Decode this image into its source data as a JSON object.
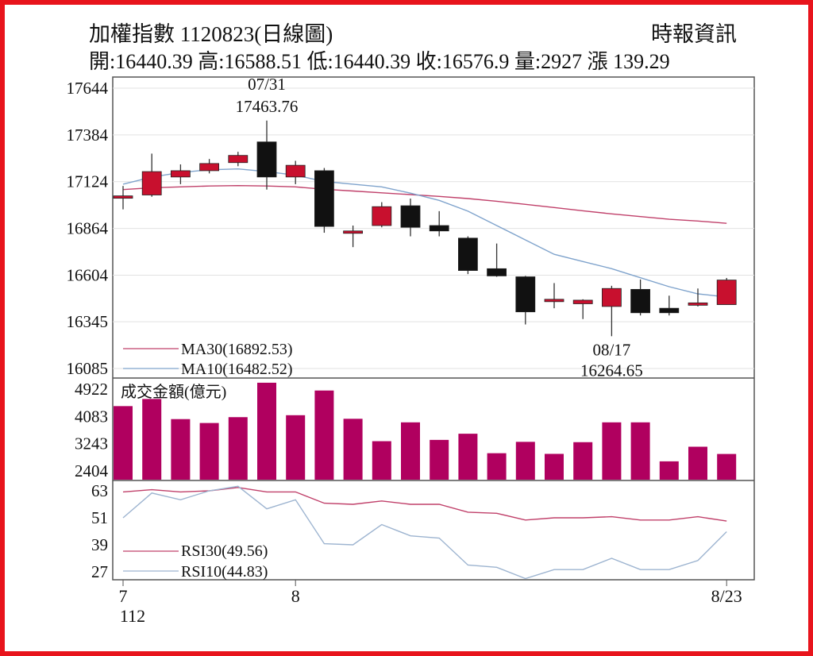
{
  "header": {
    "title": "加權指數 1120823(日線圖)",
    "source": "時報資訊",
    "stats": "開:16440.39 高:16588.51 低:16440.39 收:16576.9 量:2927 漲 139.29"
  },
  "colors": {
    "frame": "#e8141c",
    "up": "#c8102e",
    "down": "#111111",
    "ma30": "#c0406a",
    "ma10": "#7fa3cc",
    "volume": "#b0005f",
    "rsi30": "#c0406a",
    "rsi10": "#9db4d0"
  },
  "chart_data": {
    "type": "candlestick",
    "price_axis": {
      "ticks": [
        16085,
        16345,
        16604,
        16864,
        17124,
        17384,
        17644
      ],
      "range": [
        16085,
        17644
      ]
    },
    "x_labels": [
      {
        "index": 0,
        "label": "7",
        "sub": "112"
      },
      {
        "index": 6,
        "label": "8",
        "sub": ""
      },
      {
        "index": 21,
        "label": "8/23",
        "sub": ""
      }
    ],
    "candles": [
      {
        "o": 17035,
        "h": 17100,
        "l": 16970,
        "c": 17045
      },
      {
        "o": 17050,
        "h": 17280,
        "l": 17040,
        "c": 17180
      },
      {
        "o": 17150,
        "h": 17220,
        "l": 17110,
        "c": 17185
      },
      {
        "o": 17185,
        "h": 17250,
        "l": 17170,
        "c": 17225
      },
      {
        "o": 17230,
        "h": 17290,
        "l": 17210,
        "c": 17270
      },
      {
        "o": 17345,
        "h": 17463.76,
        "l": 17080,
        "c": 17150
      },
      {
        "o": 17150,
        "h": 17240,
        "l": 17110,
        "c": 17215
      },
      {
        "o": 17185,
        "h": 17200,
        "l": 16840,
        "c": 16875
      },
      {
        "o": 16850,
        "h": 16880,
        "l": 16760,
        "c": 16850
      },
      {
        "o": 16880,
        "h": 17010,
        "l": 16870,
        "c": 16985
      },
      {
        "o": 16990,
        "h": 17030,
        "l": 16820,
        "c": 16870
      },
      {
        "o": 16880,
        "h": 16960,
        "l": 16820,
        "c": 16850
      },
      {
        "o": 16810,
        "h": 16820,
        "l": 16610,
        "c": 16630
      },
      {
        "o": 16640,
        "h": 16780,
        "l": 16595,
        "c": 16600
      },
      {
        "o": 16595,
        "h": 16600,
        "l": 16330,
        "c": 16400
      },
      {
        "o": 16460,
        "h": 16560,
        "l": 16420,
        "c": 16470
      },
      {
        "o": 16445,
        "h": 16470,
        "l": 16360,
        "c": 16465
      },
      {
        "o": 16430,
        "h": 16545,
        "l": 16264.65,
        "c": 16530
      },
      {
        "o": 16525,
        "h": 16580,
        "l": 16380,
        "c": 16395
      },
      {
        "o": 16420,
        "h": 16490,
        "l": 16380,
        "c": 16395
      },
      {
        "o": 16440,
        "h": 16530,
        "l": 16430,
        "c": 16450
      },
      {
        "o": 16440.39,
        "h": 16588.51,
        "l": 16440.39,
        "c": 16576.9
      }
    ],
    "ma30": {
      "name": "MA30(16892.53)",
      "values": [
        17080,
        17090,
        17095,
        17100,
        17102,
        17100,
        17095,
        17082,
        17072,
        17062,
        17052,
        17042,
        17030,
        17015,
        16998,
        16980,
        16962,
        16945,
        16930,
        16915,
        16905,
        16892.53
      ]
    },
    "ma10": {
      "name": "MA10(16482.52)",
      "values": [
        17110,
        17150,
        17175,
        17190,
        17195,
        17180,
        17160,
        17125,
        17110,
        17095,
        17060,
        17020,
        16960,
        16880,
        16800,
        16720,
        16680,
        16640,
        16590,
        16540,
        16500,
        16482.52
      ]
    },
    "annotations": [
      {
        "index": 5,
        "date": "07/31",
        "value": "17463.76",
        "position": "above"
      },
      {
        "index": 17,
        "date": "08/17",
        "value": "16264.65",
        "position": "below"
      }
    ],
    "volume": {
      "title": "成交金額(億元)",
      "ticks": [
        2404,
        3243,
        4083,
        4922
      ],
      "range": [
        2404,
        4922
      ],
      "values": [
        4400,
        4620,
        4000,
        3880,
        4060,
        5120,
        4120,
        4880,
        4010,
        3320,
        3900,
        3360,
        3550,
        2950,
        3300,
        2930,
        3290,
        3900,
        3900,
        2700,
        3150,
        2927
      ]
    },
    "rsi": {
      "ticks": [
        27,
        39,
        51,
        63
      ],
      "range": [
        27,
        63
      ],
      "rsi30": {
        "name": "RSI30(49.56)",
        "values": [
          62.5,
          63.5,
          62.5,
          63,
          64.5,
          62.5,
          62.5,
          57.5,
          57,
          58.5,
          57,
          57,
          53.5,
          53,
          50,
          51,
          51,
          51.5,
          50,
          50,
          51.5,
          49.56
        ]
      },
      "rsi10": {
        "name": "RSI10(44.83)",
        "values": [
          51,
          62,
          59,
          63,
          65,
          55,
          59,
          39.5,
          39,
          48,
          43,
          42,
          30,
          29,
          24,
          28,
          28,
          33,
          28,
          28,
          32,
          44.83
        ]
      }
    }
  }
}
